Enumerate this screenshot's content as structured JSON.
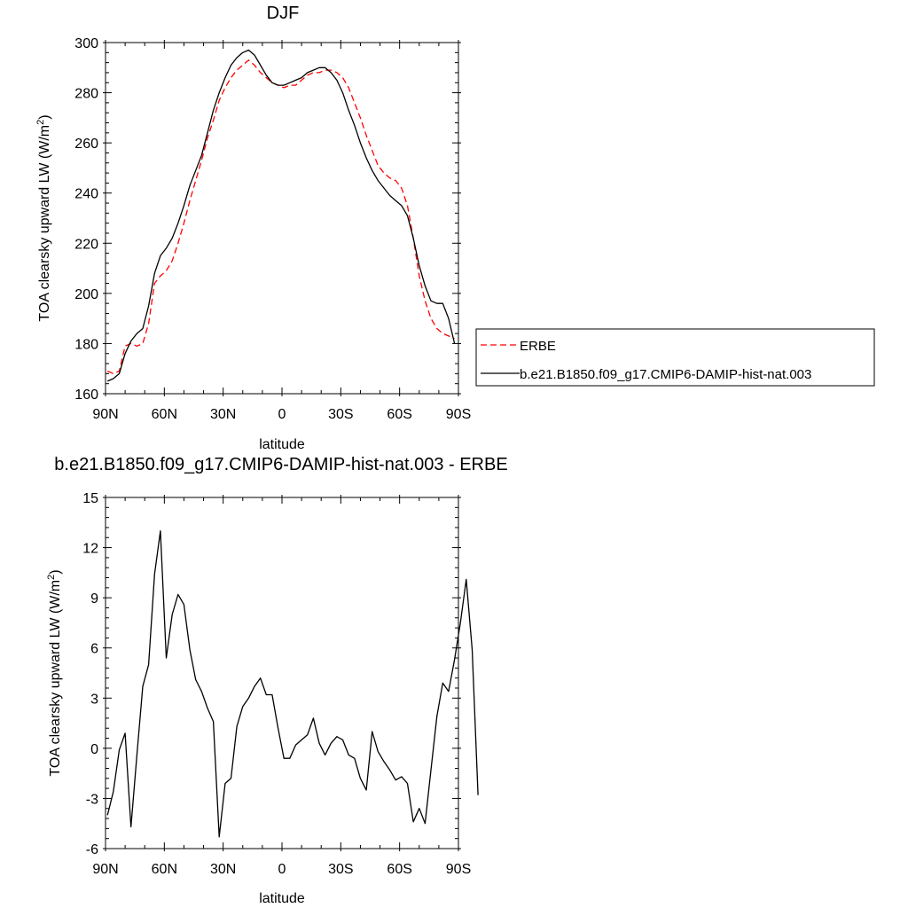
{
  "chart_data": [
    {
      "type": "line",
      "title": "DJF",
      "xlabel": "latitude",
      "ylabel": "TOA clearsky upward LW (W/m",
      "ylabel_superscript": "2",
      "ylabel_suffix": ")",
      "xlim": [
        90,
        -90
      ],
      "ylim": [
        160,
        300
      ],
      "xticks": [
        90,
        60,
        30,
        0,
        -30,
        -60,
        -90
      ],
      "xtick_labels": [
        "90N",
        "60N",
        "30N",
        "0",
        "30S",
        "60S",
        "90S"
      ],
      "yticks": [
        160,
        180,
        200,
        220,
        240,
        260,
        280,
        300
      ],
      "ytick_labels": [
        "160",
        "180",
        "200",
        "220",
        "240",
        "260",
        "280",
        "300"
      ],
      "legend_position": "right",
      "series": [
        {
          "name": "ERBE",
          "color": "#ff0000",
          "dash": "dashed",
          "points": [
            [
              89,
              169
            ],
            [
              86,
              168
            ],
            [
              83,
              169
            ],
            [
              80,
              179
            ],
            [
              77,
              180
            ],
            [
              74,
              179
            ],
            [
              71,
              180
            ],
            [
              68,
              188
            ],
            [
              65,
              204
            ],
            [
              62,
              207
            ],
            [
              59,
              209
            ],
            [
              56,
              213
            ],
            [
              53,
              220
            ],
            [
              50,
              228
            ],
            [
              47,
              237
            ],
            [
              44,
              245
            ],
            [
              41,
              253
            ],
            [
              38,
              262
            ],
            [
              35,
              269
            ],
            [
              32,
              277
            ],
            [
              29,
              282
            ],
            [
              26,
              286
            ],
            [
              23,
              289
            ],
            [
              20,
              291
            ],
            [
              17,
              293
            ],
            [
              14,
              291
            ],
            [
              11,
              288
            ],
            [
              8,
              286
            ],
            [
              5,
              284
            ],
            [
              2,
              283
            ],
            [
              -1,
              282
            ],
            [
              -4,
              283
            ],
            [
              -7,
              283
            ],
            [
              -10,
              285
            ],
            [
              -13,
              287
            ],
            [
              -16,
              288
            ],
            [
              -19,
              288
            ],
            [
              -22,
              289
            ],
            [
              -25,
              289
            ],
            [
              -28,
              288
            ],
            [
              -31,
              286
            ],
            [
              -34,
              282
            ],
            [
              -37,
              276
            ],
            [
              -40,
              270
            ],
            [
              -43,
              263
            ],
            [
              -46,
              257
            ],
            [
              -49,
              251
            ],
            [
              -52,
              248
            ],
            [
              -55,
              246
            ],
            [
              -58,
              245
            ],
            [
              -61,
              242
            ],
            [
              -64,
              235
            ],
            [
              -67,
              222
            ],
            [
              -70,
              207
            ],
            [
              -73,
              197
            ],
            [
              -76,
              190
            ],
            [
              -79,
              186
            ],
            [
              -82,
              184
            ],
            [
              -85,
              183
            ],
            [
              -88,
              182
            ]
          ]
        },
        {
          "name": "b.e21.B1850.f09_g17.CMIP6-DAMIP-hist-nat.003",
          "color": "#000000",
          "dash": "solid",
          "points": [
            [
              89,
              165
            ],
            [
              86,
              166
            ],
            [
              83,
              168
            ],
            [
              80,
              176
            ],
            [
              77,
              181
            ],
            [
              74,
              184
            ],
            [
              71,
              186
            ],
            [
              68,
              195
            ],
            [
              65,
              208
            ],
            [
              62,
              215
            ],
            [
              59,
              218
            ],
            [
              56,
              222
            ],
            [
              53,
              228
            ],
            [
              50,
              235
            ],
            [
              47,
              243
            ],
            [
              44,
              249
            ],
            [
              41,
              255
            ],
            [
              38,
              264
            ],
            [
              35,
              273
            ],
            [
              32,
              280
            ],
            [
              29,
              286
            ],
            [
              26,
              291
            ],
            [
              23,
              294
            ],
            [
              20,
              296
            ],
            [
              17,
              297
            ],
            [
              14,
              295
            ],
            [
              11,
              291
            ],
            [
              8,
              287
            ],
            [
              5,
              284
            ],
            [
              2,
              283
            ],
            [
              -1,
              283
            ],
            [
              -4,
              284
            ],
            [
              -7,
              285
            ],
            [
              -10,
              286
            ],
            [
              -13,
              288
            ],
            [
              -16,
              289
            ],
            [
              -19,
              290
            ],
            [
              -22,
              290
            ],
            [
              -25,
              288
            ],
            [
              -28,
              285
            ],
            [
              -31,
              280
            ],
            [
              -34,
              273
            ],
            [
              -37,
              267
            ],
            [
              -40,
              260
            ],
            [
              -43,
              254
            ],
            [
              -46,
              249
            ],
            [
              -49,
              245
            ],
            [
              -52,
              242
            ],
            [
              -55,
              239
            ],
            [
              -58,
              237
            ],
            [
              -61,
              235
            ],
            [
              -64,
              231
            ],
            [
              -67,
              222
            ],
            [
              -70,
              211
            ],
            [
              -73,
              203
            ],
            [
              -76,
              197
            ],
            [
              -79,
              196
            ],
            [
              -82,
              196
            ],
            [
              -85,
              190
            ],
            [
              -88,
              180
            ]
          ]
        }
      ]
    },
    {
      "type": "line",
      "title": "b.e21.B1850.f09_g17.CMIP6-DAMIP-hist-nat.003 - ERBE",
      "xlabel": "latitude",
      "ylabel": "TOA clearsky upward LW (W/m",
      "ylabel_superscript": "2",
      "ylabel_suffix": ")",
      "xlim": [
        90,
        -90
      ],
      "ylim": [
        -6,
        15
      ],
      "xticks": [
        90,
        60,
        30,
        0,
        -30,
        -60,
        -90
      ],
      "xtick_labels": [
        "90N",
        "60N",
        "30N",
        "0",
        "30S",
        "60S",
        "90S"
      ],
      "yticks": [
        -6,
        -3,
        0,
        3,
        6,
        9,
        12,
        15
      ],
      "ytick_labels": [
        "-6",
        "-3",
        "0",
        "3",
        "6",
        "9",
        "12",
        "15"
      ],
      "series": [
        {
          "color": "#000000",
          "dash": "solid",
          "points": [
            [
              89,
              -4.0
            ],
            [
              86,
              -2.6
            ],
            [
              83,
              -0.1
            ],
            [
              80,
              0.9
            ],
            [
              77,
              -4.7
            ],
            [
              74,
              -0.4
            ],
            [
              71,
              3.7
            ],
            [
              68,
              5.0
            ],
            [
              65,
              10.4
            ],
            [
              62,
              13.0
            ],
            [
              59,
              5.4
            ],
            [
              56,
              8.0
            ],
            [
              53,
              9.2
            ],
            [
              50,
              8.6
            ],
            [
              47,
              5.9
            ],
            [
              44,
              4.1
            ],
            [
              41,
              3.4
            ],
            [
              38,
              2.4
            ],
            [
              35,
              1.6
            ],
            [
              32,
              -5.3
            ],
            [
              29,
              -2.1
            ],
            [
              26,
              -1.8
            ],
            [
              23,
              1.3
            ],
            [
              20,
              2.5
            ],
            [
              17,
              3.0
            ],
            [
              14,
              3.7
            ],
            [
              11,
              4.2
            ],
            [
              8,
              3.2
            ],
            [
              5,
              3.2
            ],
            [
              2,
              1.2
            ],
            [
              -1,
              -0.6
            ],
            [
              -4,
              -0.6
            ],
            [
              -7,
              0.2
            ],
            [
              -10,
              0.5
            ],
            [
              -13,
              0.8
            ],
            [
              -16,
              1.8
            ],
            [
              -19,
              0.3
            ],
            [
              -22,
              -0.4
            ],
            [
              -25,
              0.3
            ],
            [
              -28,
              0.7
            ],
            [
              -31,
              0.5
            ],
            [
              -34,
              -0.4
            ],
            [
              -37,
              -0.6
            ],
            [
              -40,
              -1.8
            ],
            [
              -43,
              -2.5
            ],
            [
              -46,
              1.0
            ],
            [
              -49,
              -0.2
            ],
            [
              -52,
              -0.8
            ],
            [
              -55,
              -1.3
            ],
            [
              -58,
              -1.9
            ],
            [
              -61,
              -1.7
            ],
            [
              -64,
              -2.1
            ],
            [
              -67,
              -4.4
            ],
            [
              -70,
              -3.6
            ],
            [
              -73,
              -4.5
            ],
            [
              -76,
              -1.3
            ],
            [
              -79,
              1.9
            ],
            [
              -82,
              3.9
            ],
            [
              -85,
              3.4
            ],
            [
              -88,
              5.3
            ],
            [
              -91,
              7.5
            ],
            [
              -94,
              10.1
            ],
            [
              -97,
              5.9
            ],
            [
              -100,
              -2.8
            ]
          ]
        }
      ]
    }
  ]
}
